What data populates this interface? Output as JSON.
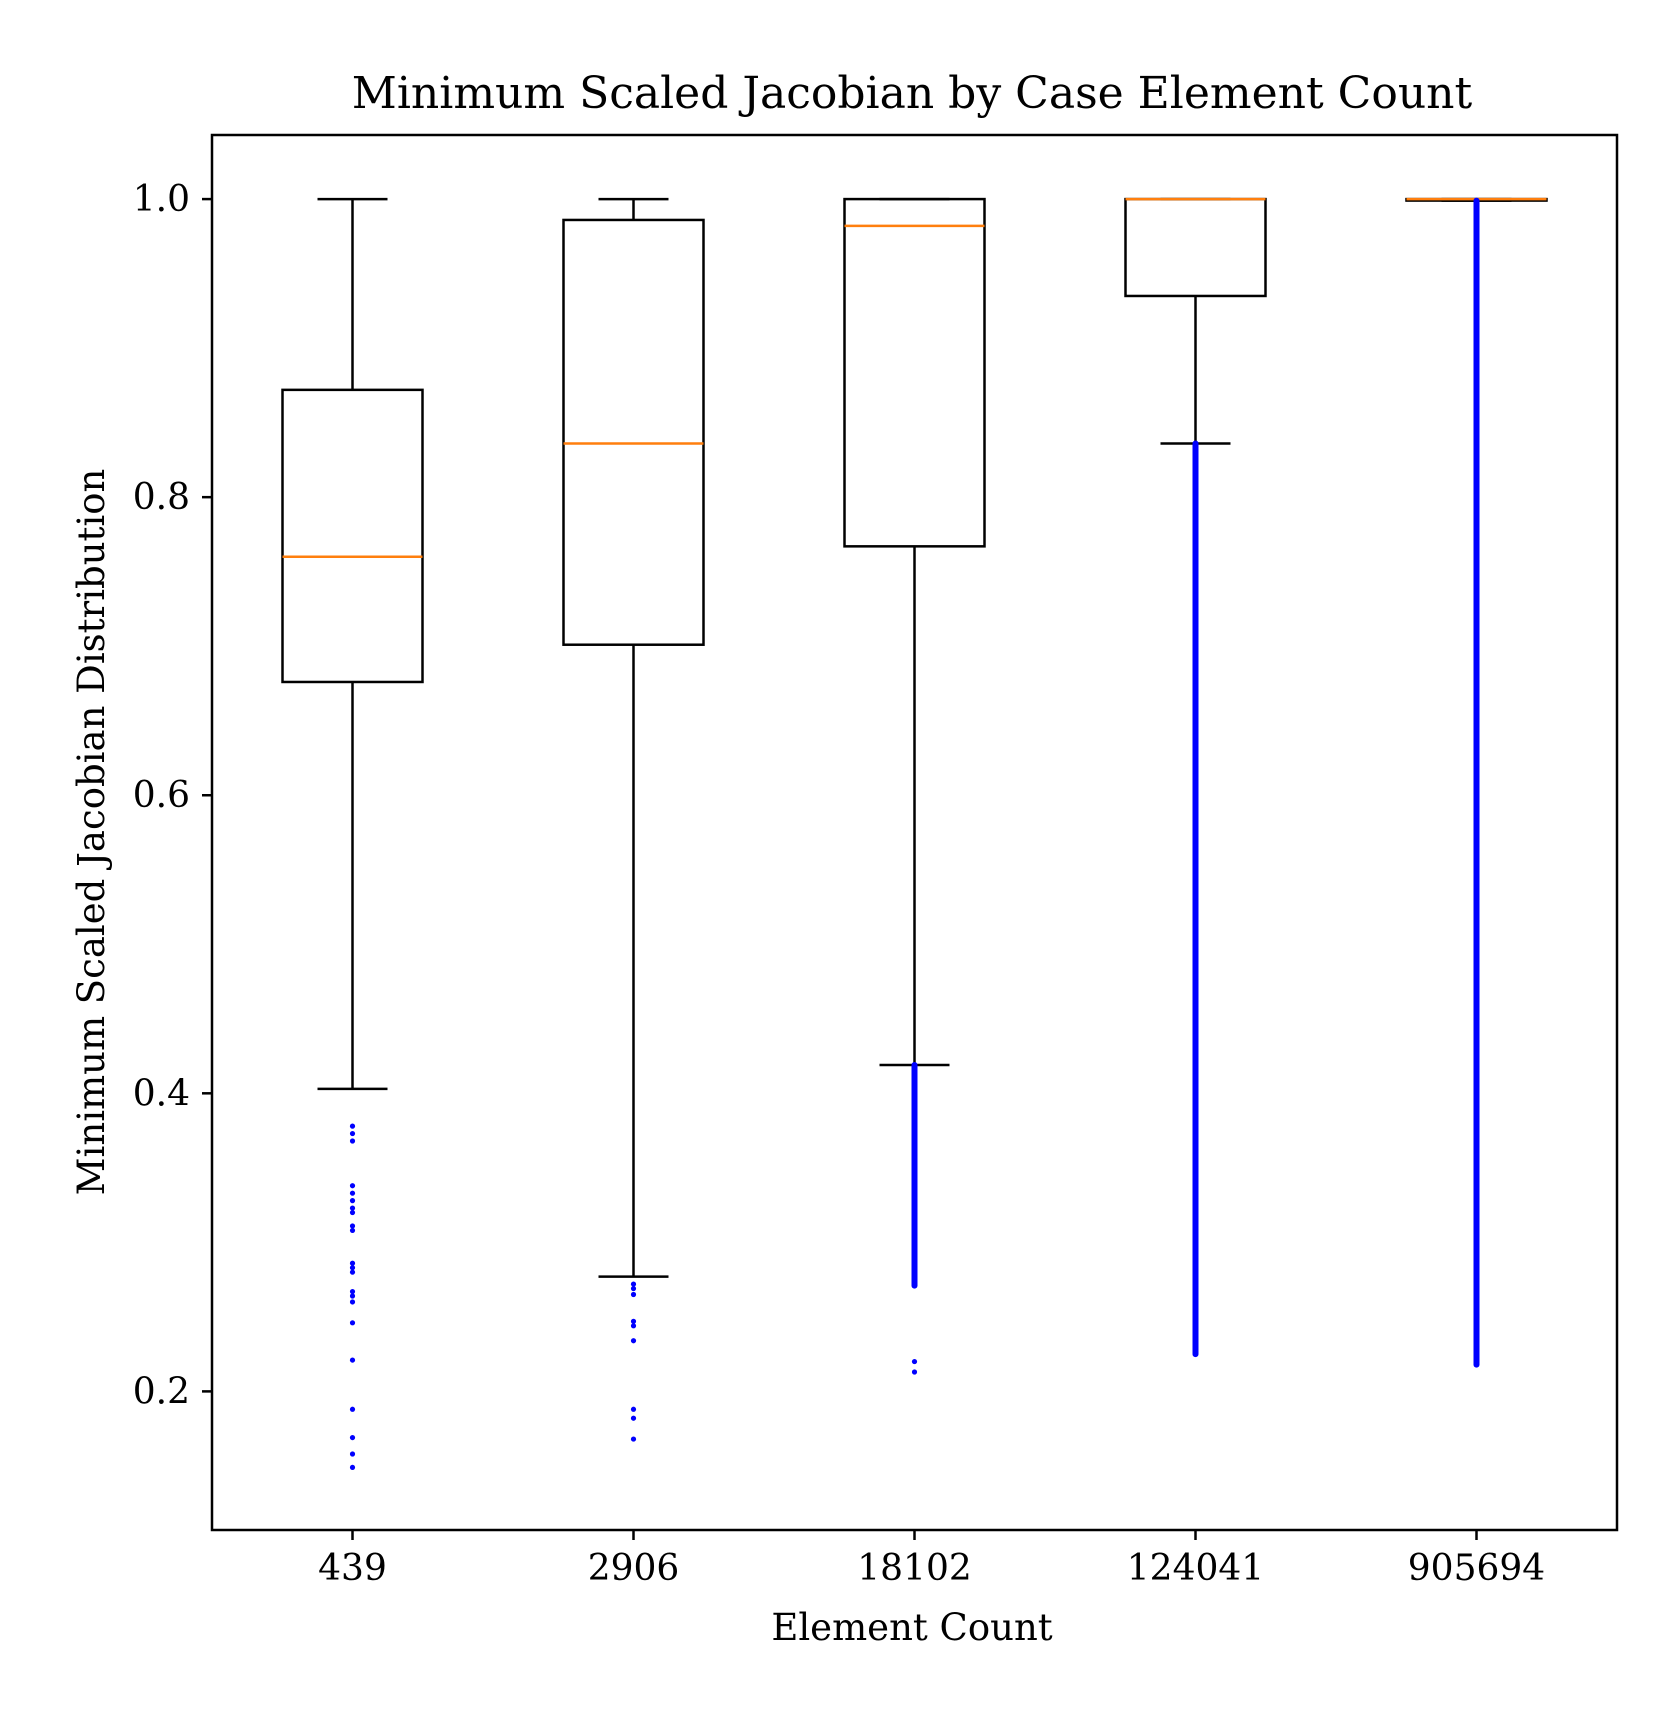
{
  "chart_data": {
    "type": "box",
    "title": "Minimum Scaled Jacobian by Case Element Count",
    "xlabel": "Element Count",
    "ylabel": "Minimum Scaled Jacobian Distribution",
    "ylim": [
      0.107,
      1.043
    ],
    "yticks": [
      0.2,
      0.4,
      0.6,
      0.8,
      1.0
    ],
    "ytick_labels": [
      "0.2",
      "0.4",
      "0.6",
      "0.8",
      "1.0"
    ],
    "categories": [
      "439",
      "2906",
      "18102",
      "124041",
      "905694"
    ],
    "grid": false,
    "legend": "none",
    "colors": {
      "box": "#000000",
      "median": "#ff7f0e",
      "outlier": "#0000ff"
    },
    "boxes": [
      {
        "category": "439",
        "whisker_low": 0.403,
        "q1": 0.676,
        "median": 0.76,
        "q3": 0.872,
        "whisker_high": 1.0,
        "outliers": [
          0.378,
          0.373,
          0.368,
          0.338,
          0.333,
          0.328,
          0.323,
          0.32,
          0.311,
          0.308,
          0.286,
          0.283,
          0.28,
          0.267,
          0.264,
          0.26,
          0.246,
          0.221,
          0.188,
          0.169,
          0.158,
          0.149
        ]
      },
      {
        "category": "2906",
        "whisker_low": 0.277,
        "q1": 0.701,
        "median": 0.836,
        "q3": 0.986,
        "whisker_high": 1.0,
        "outliers": [
          0.272,
          0.269,
          0.265,
          0.247,
          0.244,
          0.234,
          0.188,
          0.182,
          0.168
        ]
      },
      {
        "category": "18102",
        "whisker_low": 0.419,
        "q1": 0.767,
        "median": 0.982,
        "q3": 1.0,
        "whisker_high": 1.0,
        "outlier_ranges": [
          [
            0.271,
            0.419
          ]
        ],
        "outliers": [
          0.22,
          0.213
        ]
      },
      {
        "category": "124041",
        "whisker_low": 0.836,
        "q1": 0.935,
        "median": 1.0,
        "q3": 1.0,
        "whisker_high": 1.0,
        "outlier_ranges": [
          [
            0.225,
            0.836
          ]
        ],
        "outliers": []
      },
      {
        "category": "905694",
        "whisker_low": 0.999,
        "q1": 0.999,
        "median": 1.0,
        "q3": 1.0,
        "whisker_high": 1.0,
        "outlier_ranges": [
          [
            0.218,
            0.999
          ]
        ],
        "outliers": []
      }
    ]
  }
}
